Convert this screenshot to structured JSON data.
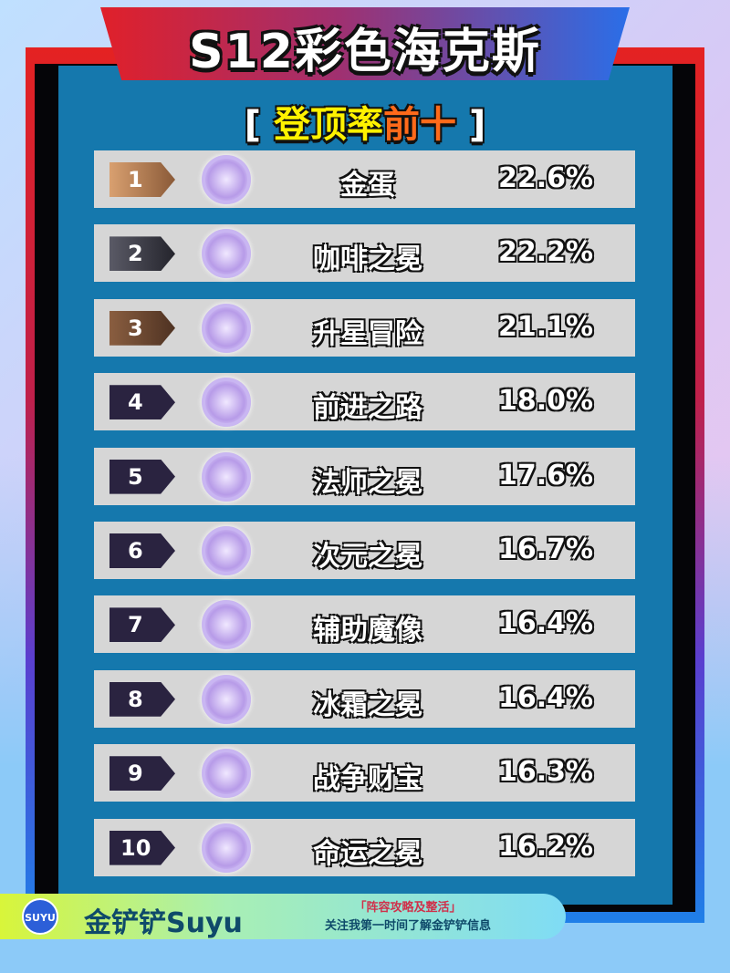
{
  "header": {
    "title": "S12彩色海克斯",
    "subtitle_open": "[",
    "subtitle_yellow": "登顶率",
    "subtitle_orange": "前十",
    "subtitle_close": "]"
  },
  "colors": {
    "gold_badge": "#b07c4a",
    "silver_badge": "#3a3a48",
    "bronze_badge": "#6e4a34",
    "default_badge": "#2a2340",
    "row_bg": "#d6d6d6",
    "panel": "#1578ad"
  },
  "rows": [
    {
      "rank": "1",
      "icon": "golden-egg-icon",
      "name": "金蛋",
      "rate": "22.6%"
    },
    {
      "rank": "2",
      "icon": "coffee-crown-icon",
      "name": "咖啡之冕",
      "rate": "22.2%"
    },
    {
      "rank": "3",
      "icon": "star-up-adventure-icon",
      "name": "升星冒险",
      "rate": "21.1%"
    },
    {
      "rank": "4",
      "icon": "forward-path-icon",
      "name": "前进之路",
      "rate": "18.0%"
    },
    {
      "rank": "5",
      "icon": "mage-hat-crown-icon",
      "name": "法师之冕",
      "rate": "17.6%"
    },
    {
      "rank": "6",
      "icon": "dimension-crown-icon",
      "name": "次元之冕",
      "rate": "16.7%"
    },
    {
      "rank": "7",
      "icon": "support-golem-icon",
      "name": "辅助魔像",
      "rate": "16.4%"
    },
    {
      "rank": "8",
      "icon": "frost-crown-icon",
      "name": "冰霜之冕",
      "rate": "16.4%"
    },
    {
      "rank": "9",
      "icon": "war-treasure-icon",
      "name": "战争财宝",
      "rate": "16.3%"
    },
    {
      "rank": "10",
      "icon": "fate-crown-icon",
      "name": "命运之冕",
      "rate": "16.2%"
    }
  ],
  "footer": {
    "logo_text": "SUYU",
    "brand": "金铲铲Suyu",
    "tagline1": "「阵容攻略及整活」",
    "tagline2": "关注我第一时间了解金铲铲信息"
  }
}
